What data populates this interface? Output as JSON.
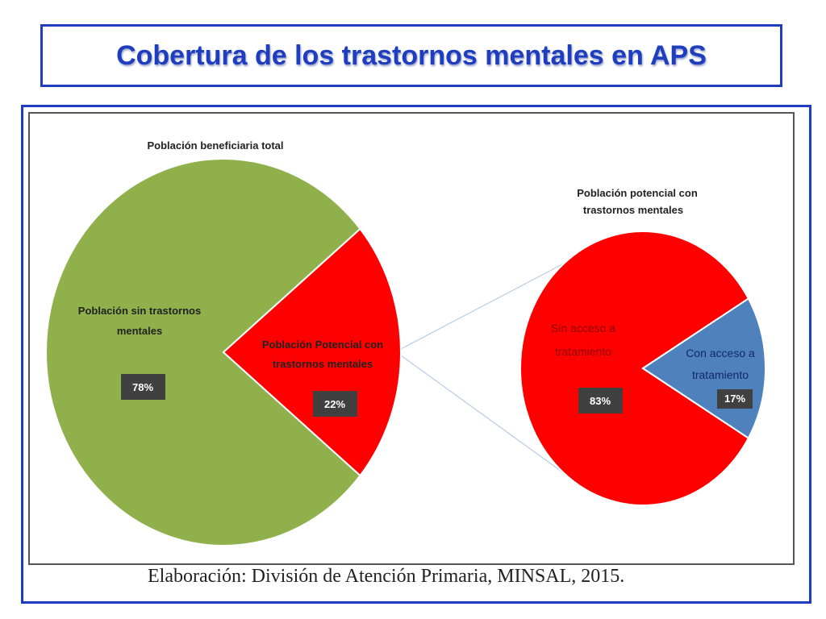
{
  "slide": {
    "title": "Cobertura de los trastornos mentales en APS",
    "source": "Elaboración: División de Atención Primaria, MINSAL, 2015."
  },
  "colors": {
    "title_blue": "#1f3dbf",
    "green": "#8fb04a",
    "red": "#ff0000",
    "blue": "#4f81bd",
    "label_box": "#404040"
  },
  "chart_data": [
    {
      "type": "pie",
      "title": "Población beneficiaria total",
      "slices": [
        {
          "label_lines": [
            "Población sin trastornos",
            "mentales"
          ],
          "value": 78,
          "value_label": "78%",
          "color": "#8fb04a"
        },
        {
          "label_lines": [
            "Población Potencial con",
            "trastornos mentales"
          ],
          "value": 22,
          "value_label": "22%",
          "color": "#ff0000"
        }
      ]
    },
    {
      "type": "pie",
      "title_lines": [
        "Población potencial con",
        "trastornos mentales"
      ],
      "slices": [
        {
          "label_lines": [
            "Sin acceso a",
            "tratamiento"
          ],
          "value": 83,
          "value_label": "83%",
          "color": "#ff0000"
        },
        {
          "label_lines": [
            "Con acceso a",
            "tratamiento"
          ],
          "value": 17,
          "value_label": "17%",
          "color": "#4f81bd"
        }
      ]
    }
  ]
}
